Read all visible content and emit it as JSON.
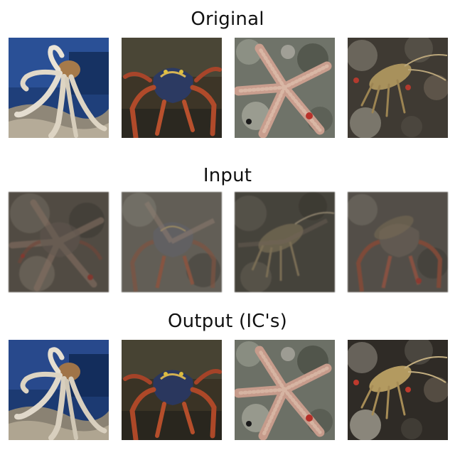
{
  "figure": {
    "rows": [
      {
        "title": "Original",
        "tiles": [
          {
            "subject": "octopus",
            "state": "clean"
          },
          {
            "subject": "crab",
            "state": "clean"
          },
          {
            "subject": "starfish",
            "state": "clean"
          },
          {
            "subject": "lobster",
            "state": "clean"
          }
        ]
      },
      {
        "title": "Input",
        "tiles": [
          {
            "subject": "mixture",
            "state": "mixed"
          },
          {
            "subject": "mixture",
            "state": "mixed"
          },
          {
            "subject": "mixture",
            "state": "mixed"
          },
          {
            "subject": "mixture",
            "state": "mixed"
          }
        ]
      },
      {
        "title": "Output (IC's)",
        "tiles": [
          {
            "subject": "octopus",
            "state": "recovered"
          },
          {
            "subject": "crab",
            "state": "recovered"
          },
          {
            "subject": "starfish",
            "state": "recovered"
          },
          {
            "subject": "lobster",
            "state": "recovered"
          }
        ]
      }
    ]
  }
}
